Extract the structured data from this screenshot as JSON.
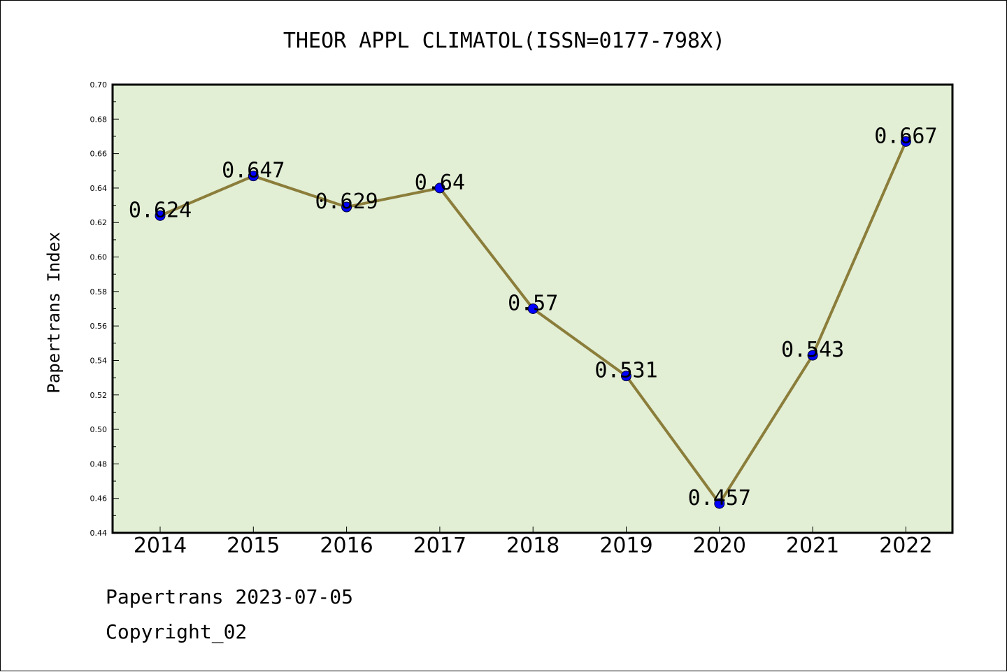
{
  "chart_data": {
    "type": "line",
    "title": "THEOR APPL CLIMATOL(ISSN=0177-798X)",
    "xlabel": "",
    "ylabel": "Papertrans Index",
    "categories": [
      "2014",
      "2015",
      "2016",
      "2017",
      "2018",
      "2019",
      "2020",
      "2021",
      "2022"
    ],
    "values": [
      0.624,
      0.647,
      0.629,
      0.64,
      0.57,
      0.531,
      0.457,
      0.543,
      0.667
    ],
    "data_labels": [
      "0.624",
      "0.647",
      "0.629",
      "0.64",
      "0.57",
      "0.531",
      "0.457",
      "0.543",
      "0.667"
    ],
    "ylim": [
      0.44,
      0.7
    ],
    "yticks": [
      "0.44",
      "0.46",
      "0.48",
      "0.50",
      "0.52",
      "0.54",
      "0.56",
      "0.58",
      "0.60",
      "0.62",
      "0.64",
      "0.66",
      "0.68",
      "0.70"
    ],
    "grid": false,
    "colors": {
      "plot_background": "#e2efd5",
      "line": "#8b7d3a",
      "marker": "#0000ff"
    }
  },
  "footer": {
    "line1": "Papertrans 2023-07-05",
    "line2": "Copyright_02"
  }
}
